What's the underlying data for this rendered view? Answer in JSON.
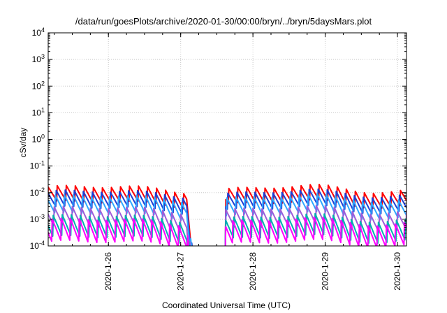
{
  "chart_data": {
    "type": "line",
    "title": "/data/run/goesPlots/archive/2020-01-30/00:00/bryn/../bryn/5daysMars.plot",
    "xlabel": "Coordinated Universal Time (UTC)",
    "ylabel": "cSv/day",
    "yscale": "log",
    "ylim": [
      0.0001,
      10000
    ],
    "xlim": [
      "2020-01-25 04:00",
      "2020-01-30 03:00"
    ],
    "grid": true,
    "y_ticks": [
      {
        "base": "10",
        "exp": "-4"
      },
      {
        "base": "10",
        "exp": "-3"
      },
      {
        "base": "10",
        "exp": "-2"
      },
      {
        "base": "10",
        "exp": "-1"
      },
      {
        "base": "10",
        "exp": "0"
      },
      {
        "base": "10",
        "exp": "1"
      },
      {
        "base": "10",
        "exp": "2"
      },
      {
        "base": "10",
        "exp": "3"
      },
      {
        "base": "10",
        "exp": "4"
      }
    ],
    "x_ticks": [
      "2020-1-26",
      "2020-1-27",
      "2020-1-28",
      "2020-1-29",
      "2020-1-30"
    ],
    "series": [
      {
        "color": "#ff0000",
        "peak": 0.014,
        "trough": 0.0035
      },
      {
        "color": "#1f3fd4",
        "peak": 0.0095,
        "trough": 0.0022
      },
      {
        "color": "#2ea8ff",
        "peak": 0.0065,
        "trough": 0.0013
      },
      {
        "color": "#a05cd8",
        "peak": 0.0024,
        "trough": 0.00045
      },
      {
        "color": "#00b0b0",
        "peak": 0.0012,
        "trough": 0.00018
      },
      {
        "color": "#ff00ff",
        "peak": 0.0009,
        "trough": 0.00012
      }
    ],
    "data_gaps": [
      [
        "2020-01-27 05:00",
        "2020-01-27 15:00"
      ]
    ],
    "cycle_hours": 3
  }
}
